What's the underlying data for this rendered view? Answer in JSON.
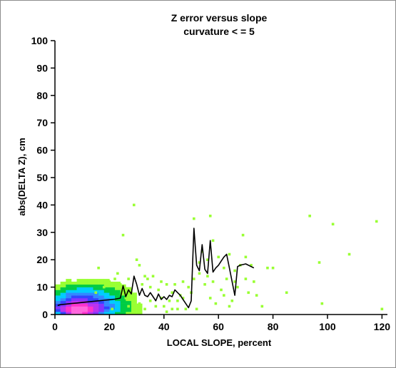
{
  "chart_data": {
    "type": "scatter",
    "title": "Z error versus slope",
    "subtitle": "curvature < = 5",
    "xlabel": "LOCAL SLOPE, percent",
    "ylabel": "abs(DELTA Z), cm",
    "xlim": [
      0,
      122
    ],
    "ylim": [
      0,
      100
    ],
    "x_ticks": [
      0,
      20,
      40,
      60,
      80,
      100,
      120
    ],
    "y_ticks": [
      0,
      10,
      20,
      30,
      40,
      50,
      60,
      70,
      80,
      90,
      100
    ],
    "grid": false,
    "colors": {
      "scatter": "#99ff33",
      "density_high": "#ff33cc",
      "density_mid": "#3344ff",
      "density_low": "#00cc44",
      "median_line": "#000000",
      "contour": "#555555"
    },
    "scatter_points": [
      [
        29,
        40
      ],
      [
        25,
        29
      ],
      [
        51,
        35
      ],
      [
        57,
        36
      ],
      [
        54,
        23
      ],
      [
        56,
        20
      ],
      [
        58,
        27
      ],
      [
        60,
        21
      ],
      [
        53,
        19
      ],
      [
        62,
        17
      ],
      [
        64,
        22
      ],
      [
        66,
        16
      ],
      [
        68,
        18
      ],
      [
        70,
        21
      ],
      [
        69,
        29
      ],
      [
        72,
        18
      ],
      [
        78,
        17
      ],
      [
        80,
        17
      ],
      [
        85,
        8
      ],
      [
        93.5,
        36
      ],
      [
        97,
        19
      ],
      [
        98,
        4
      ],
      [
        102,
        33
      ],
      [
        108,
        22
      ],
      [
        118,
        34
      ],
      [
        120,
        2
      ],
      [
        30,
        20
      ],
      [
        31,
        18
      ],
      [
        32,
        11
      ],
      [
        33,
        14
      ],
      [
        34,
        13
      ],
      [
        35,
        10
      ],
      [
        36,
        14
      ],
      [
        38,
        9
      ],
      [
        39,
        6
      ],
      [
        40,
        3
      ],
      [
        41,
        11
      ],
      [
        42,
        5
      ],
      [
        43,
        8
      ],
      [
        44,
        11
      ],
      [
        45,
        5
      ],
      [
        46,
        7
      ],
      [
        47,
        6
      ],
      [
        48,
        2
      ],
      [
        49,
        10
      ],
      [
        50,
        8
      ],
      [
        52,
        2
      ],
      [
        53,
        15
      ],
      [
        55,
        11
      ],
      [
        57,
        6
      ],
      [
        59,
        4
      ],
      [
        61,
        9
      ],
      [
        63,
        13
      ],
      [
        65,
        5
      ],
      [
        67,
        10
      ],
      [
        71,
        8
      ],
      [
        74,
        7
      ],
      [
        76,
        3
      ],
      [
        26,
        6
      ],
      [
        27,
        13
      ],
      [
        28,
        8
      ],
      [
        24,
        11
      ],
      [
        22,
        13
      ],
      [
        21,
        2
      ],
      [
        20,
        12
      ],
      [
        18,
        10
      ],
      [
        16,
        17
      ],
      [
        15,
        8
      ],
      [
        23,
        15
      ],
      [
        31,
        4
      ],
      [
        33,
        2
      ],
      [
        35,
        5
      ],
      [
        37,
        3
      ],
      [
        39,
        12
      ],
      [
        27,
        3
      ],
      [
        29,
        1
      ],
      [
        45,
        2
      ],
      [
        51,
        13
      ],
      [
        56,
        14
      ],
      [
        58,
        12
      ],
      [
        62,
        7
      ],
      [
        64,
        3
      ],
      [
        66,
        12
      ],
      [
        70,
        13
      ],
      [
        73,
        12
      ],
      [
        47,
        12
      ],
      [
        43,
        2
      ],
      [
        41,
        1
      ]
    ],
    "density_grid": {
      "x0": 0,
      "dx": 2,
      "y0": 0,
      "dy": 1,
      "rows": [
        [
          3,
          5,
          7,
          9,
          9,
          8,
          7,
          6,
          4,
          3,
          3,
          2,
          2,
          1,
          1,
          1
        ],
        [
          5,
          7,
          8,
          9,
          9,
          9,
          8,
          7,
          6,
          4,
          3,
          3,
          2,
          2,
          1,
          1
        ],
        [
          6,
          7,
          8,
          9,
          9,
          9,
          8,
          7,
          6,
          5,
          4,
          3,
          2,
          2,
          1,
          1
        ],
        [
          5,
          6,
          7,
          8,
          8,
          8,
          7,
          7,
          6,
          4,
          4,
          3,
          2,
          2,
          1,
          1
        ],
        [
          4,
          5,
          6,
          7,
          7,
          7,
          6,
          6,
          5,
          4,
          3,
          3,
          2,
          2,
          1,
          0
        ],
        [
          3,
          4,
          5,
          6,
          6,
          6,
          5,
          5,
          4,
          4,
          3,
          2,
          2,
          1,
          1,
          0
        ],
        [
          3,
          3,
          4,
          5,
          5,
          5,
          5,
          4,
          4,
          3,
          3,
          2,
          2,
          1,
          1,
          0
        ],
        [
          2,
          3,
          4,
          4,
          4,
          4,
          4,
          4,
          3,
          3,
          2,
          2,
          1,
          1,
          1,
          0
        ],
        [
          2,
          2,
          3,
          3,
          3,
          3,
          3,
          3,
          3,
          2,
          2,
          2,
          1,
          1,
          0,
          0
        ],
        [
          1,
          2,
          2,
          2,
          3,
          3,
          3,
          2,
          2,
          2,
          2,
          1,
          1,
          1,
          0,
          0
        ],
        [
          1,
          1,
          2,
          2,
          2,
          2,
          2,
          2,
          2,
          1,
          1,
          1,
          1,
          0,
          0,
          0
        ],
        [
          0,
          1,
          1,
          1,
          1,
          1,
          1,
          1,
          1,
          1,
          1,
          1,
          0,
          0,
          0,
          0
        ],
        [
          0,
          0,
          1,
          0,
          1,
          1,
          1,
          1,
          1,
          1,
          0,
          0,
          0,
          0,
          0,
          0
        ]
      ]
    },
    "median_line": {
      "x": [
        1,
        2,
        4,
        6,
        8,
        10,
        12,
        14,
        16,
        18,
        20,
        22,
        24,
        25,
        26,
        27,
        28,
        29,
        30,
        31,
        32,
        33,
        34,
        35,
        36,
        37,
        38,
        39,
        40,
        41,
        42,
        43,
        44,
        45,
        46,
        47,
        48,
        49,
        50,
        51,
        52,
        53,
        54,
        55,
        56,
        57,
        58,
        59,
        60,
        61,
        62,
        63,
        64,
        66,
        67,
        68,
        70,
        73
      ],
      "y": [
        3.3,
        3.6,
        3.8,
        4.0,
        4.2,
        4.4,
        4.6,
        4.8,
        5.0,
        5.2,
        5.4,
        5.6,
        6.0,
        10.5,
        6.5,
        9.0,
        7.5,
        14.0,
        11.0,
        7.0,
        9.5,
        7.0,
        6.5,
        8.0,
        6.5,
        5.0,
        7.5,
        5.5,
        6.5,
        5.5,
        7.0,
        6.5,
        9.0,
        8.0,
        7.0,
        5.5,
        4.0,
        2.5,
        5.0,
        31.5,
        18.0,
        16.0,
        25.5,
        16.5,
        15.0,
        27.0,
        15.5,
        17.0,
        18.0,
        19.5,
        21.0,
        22.0,
        17.0,
        7.0,
        17.5,
        18.0,
        18.5,
        17.0
      ]
    }
  }
}
